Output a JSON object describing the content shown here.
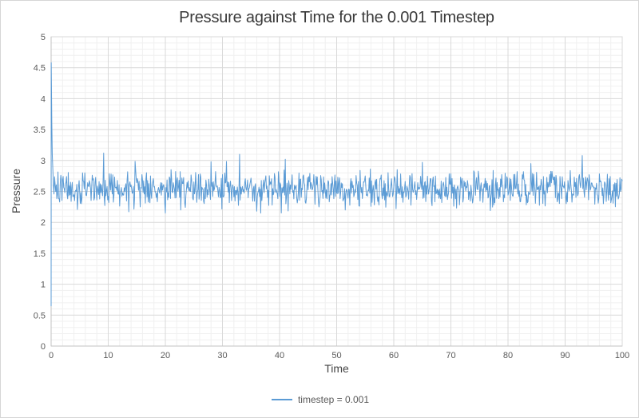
{
  "chart_data": {
    "type": "line",
    "title": "Pressure against Time for the 0.001 Timestep",
    "xlabel": "Time",
    "ylabel": "Pressure",
    "xlim": [
      0,
      100
    ],
    "ylim": [
      0,
      5
    ],
    "x_ticks": {
      "values": [
        0,
        10,
        20,
        30,
        40,
        50,
        60,
        70,
        80,
        90,
        100
      ],
      "labels": [
        "0",
        "10",
        "20",
        "30",
        "40",
        "50",
        "60",
        "70",
        "80",
        "90",
        "100"
      ]
    },
    "y_ticks": {
      "values": [
        0,
        0.5,
        1,
        1.5,
        2,
        2.5,
        3,
        3.5,
        4,
        4.5,
        5
      ],
      "labels": [
        "0",
        "0.5",
        "1",
        "1.5",
        "2",
        "2.5",
        "3",
        "3.5",
        "4",
        "4.5",
        "5"
      ]
    },
    "x_minor_step": 2,
    "y_minor_step": 0.1,
    "grid": {
      "major": true,
      "minor": true
    },
    "legend": {
      "position": "bottom-center",
      "entries": [
        "timestep = 0.001"
      ]
    },
    "series": [
      {
        "name": "timestep = 0.001",
        "color": "#5B9BD5",
        "description": "noisy pressure trace: sharp startup transient at t=0 then fluctuation about equilibrium",
        "initial_transient_points": [
          [
            0,
            0.65
          ],
          [
            0.02,
            4.58
          ],
          [
            0.06,
            4.2
          ],
          [
            0.12,
            3.6
          ],
          [
            0.2,
            3.1
          ],
          [
            0.3,
            2.85
          ]
        ],
        "steady_state": {
          "t_start": 0.4,
          "t_end": 100,
          "t_step": 0.1,
          "mean": 2.55,
          "noise_half_amplitude": 0.32,
          "excursion_probability": 0.04,
          "observed_min": 2.15,
          "observed_max": 3.12
        },
        "notable_extremes": [
          [
            9.2,
            3.12
          ],
          [
            13.6,
            2.17
          ],
          [
            22.7,
            2.2
          ],
          [
            28,
            2.98
          ],
          [
            33,
            3.1
          ],
          [
            36,
            2.18
          ],
          [
            41,
            3.02
          ],
          [
            51.5,
            2.2
          ],
          [
            60.4,
            2.22
          ],
          [
            65,
            2.97
          ],
          [
            71,
            2.23
          ],
          [
            84,
            2.95
          ],
          [
            93,
            3.08
          ]
        ],
        "random_seed": 20
      }
    ]
  },
  "style": {
    "background": "#ffffff",
    "chart_border": "#d6d6d6",
    "major_gridline": "#d9d9d9",
    "minor_gridline": "#f0f0f0",
    "axis_line": "#c3c3c3",
    "tick_label_color": "#595959",
    "axis_title_color": "#464646",
    "title_color": "#3a3a3a",
    "legend_text_color": "#595959",
    "series_color": "#5B9BD5"
  }
}
